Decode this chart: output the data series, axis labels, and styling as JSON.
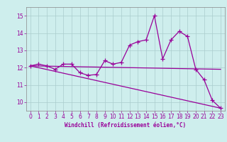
{
  "xlabel": "Windchill (Refroidissement éolien,°C)",
  "ylabel": "",
  "background_color": "#ceeeed",
  "line_color": "#990099",
  "grid_color": "#aacccc",
  "xlim": [
    -0.5,
    23.5
  ],
  "ylim": [
    9.5,
    15.5
  ],
  "yticks": [
    10,
    11,
    12,
    13,
    14,
    15
  ],
  "xticks": [
    0,
    1,
    2,
    3,
    4,
    5,
    6,
    7,
    8,
    9,
    10,
    11,
    12,
    13,
    14,
    15,
    16,
    17,
    18,
    19,
    20,
    21,
    22,
    23
  ],
  "main_line_x": [
    0,
    1,
    2,
    3,
    4,
    5,
    6,
    7,
    8,
    9,
    10,
    11,
    12,
    13,
    14,
    15,
    16,
    17,
    18,
    19,
    20,
    21,
    22,
    23
  ],
  "main_line_y": [
    12.1,
    12.2,
    12.1,
    11.9,
    12.2,
    12.2,
    11.7,
    11.55,
    11.6,
    12.4,
    12.2,
    12.3,
    13.3,
    13.5,
    13.6,
    15.0,
    12.5,
    13.6,
    14.1,
    13.8,
    11.9,
    11.3,
    10.1,
    9.65
  ],
  "line2_x": [
    0,
    23
  ],
  "line2_y": [
    12.1,
    11.9
  ],
  "line3_x": [
    0,
    23
  ],
  "line3_y": [
    12.1,
    9.65
  ],
  "marker": "+",
  "markersize": 4,
  "linewidth": 0.9,
  "tick_fontsize": 5.5,
  "xlabel_fontsize": 5.5
}
